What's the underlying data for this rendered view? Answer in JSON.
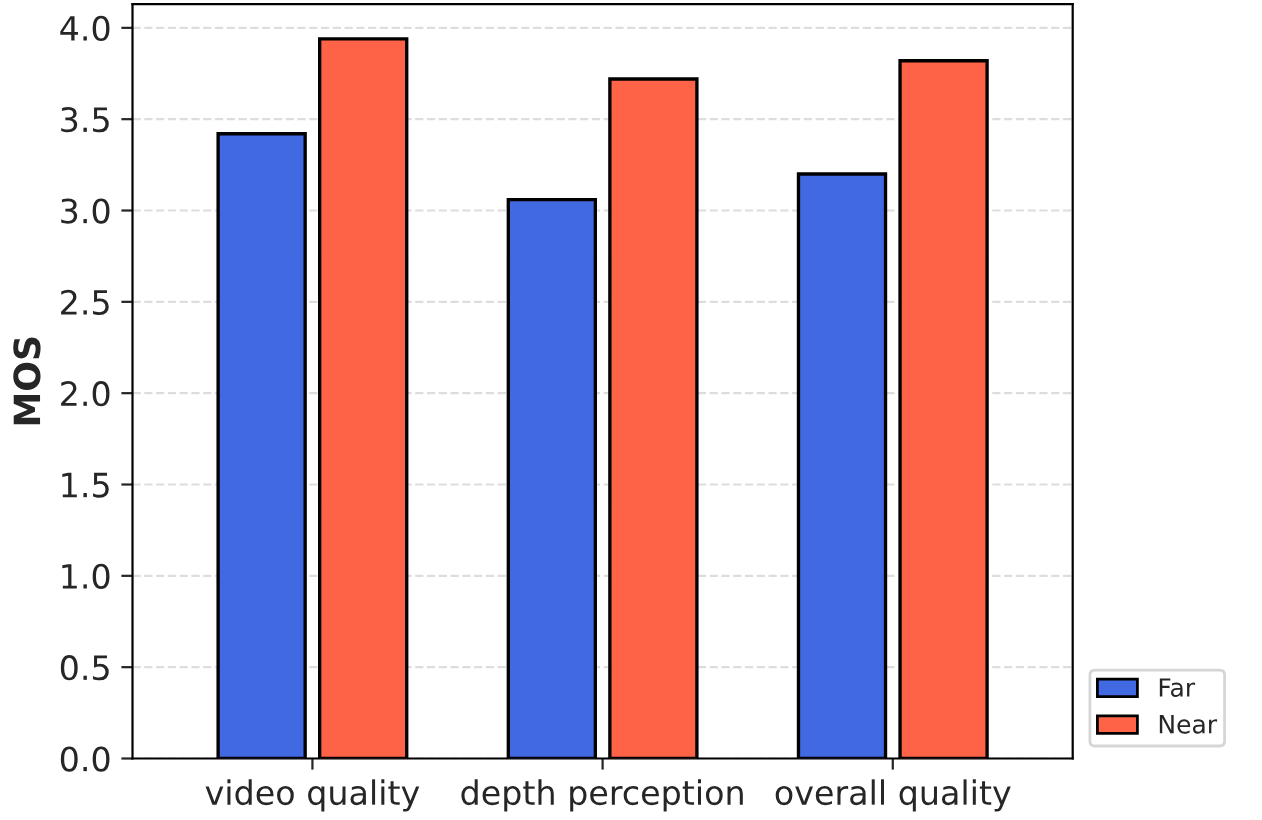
{
  "chart_data": {
    "type": "bar",
    "ylabel": "MOS",
    "categories": [
      "video quality",
      "depth perception",
      "overall quality"
    ],
    "series": [
      {
        "name": "Far",
        "color": "#4169e1",
        "values": [
          3.42,
          3.06,
          3.2
        ]
      },
      {
        "name": "Near",
        "color": "#ff6347",
        "values": [
          3.94,
          3.72,
          3.82
        ]
      }
    ],
    "ylim": [
      0,
      4.13
    ],
    "yticks": [
      {
        "value": 0,
        "label": "0.0"
      },
      0.5,
      {
        "value": 1,
        "label": "1.0"
      },
      1.5,
      {
        "value": 2,
        "label": "2.0"
      },
      2.5,
      {
        "value": 3,
        "label": "3.0"
      },
      3.5,
      {
        "value": 4,
        "label": "4.0"
      }
    ],
    "grid": "y",
    "legend": "bottom right"
  }
}
